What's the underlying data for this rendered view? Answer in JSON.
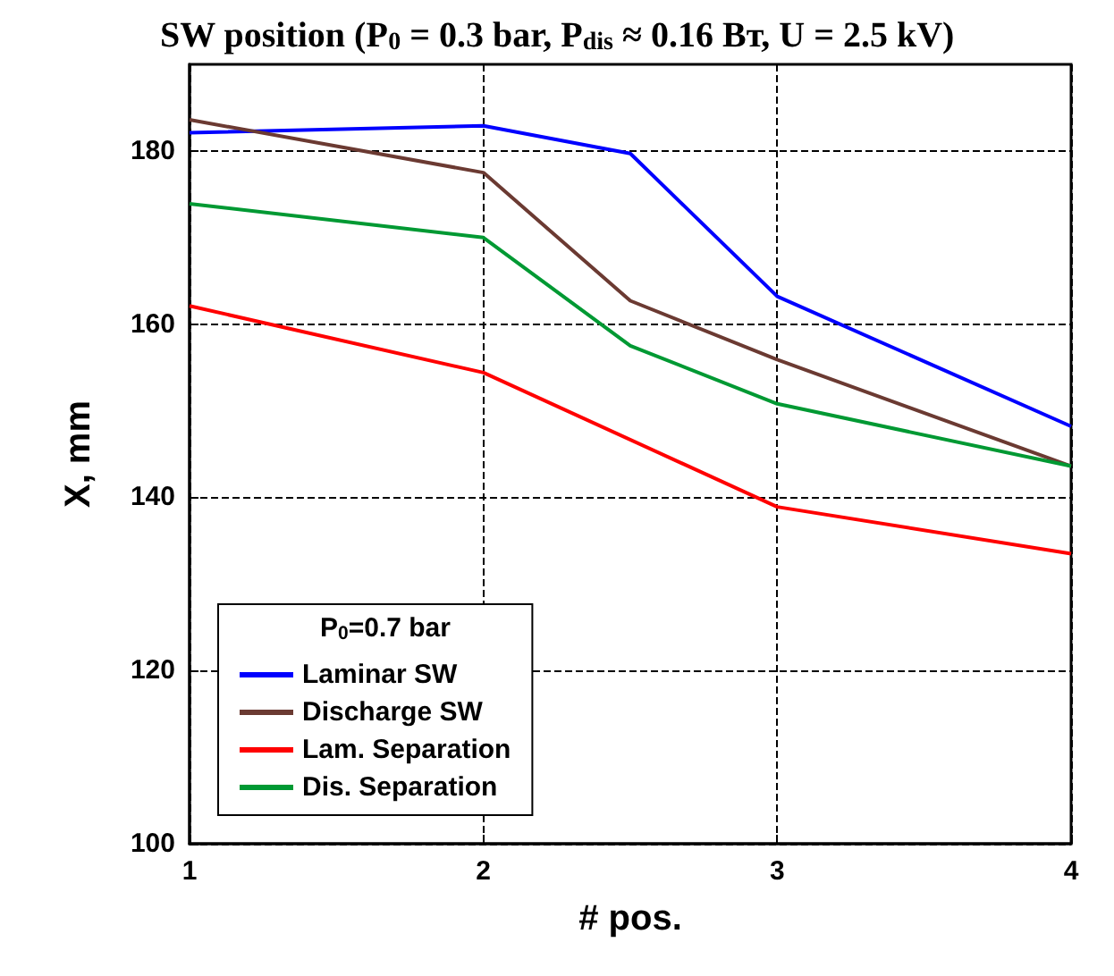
{
  "chart_data": {
    "type": "line",
    "title": "SW position (P$_{0}$ = 0.3 bar, P$_{dis}$ ≈ 0.16 Вт, U = 2.5 kV)",
    "xlabel": "# pos.",
    "ylabel": "X, mm",
    "legend_title": "P$_{0}$=0.7 bar",
    "x": [
      1,
      2,
      2.5,
      3,
      4
    ],
    "series": [
      {
        "name": "Laminar SW",
        "color": "#0000ff",
        "values": [
          182.1,
          182.9,
          179.7,
          163.2,
          148.2
        ]
      },
      {
        "name": "Discharge SW",
        "color": "#6b3a32",
        "values": [
          183.6,
          177.5,
          162.7,
          155.9,
          143.6
        ]
      },
      {
        "name": "Lam. Separation",
        "color": "#ff0000",
        "x": [
          1,
          2,
          3,
          4
        ],
        "values": [
          162.1,
          154.4,
          138.9,
          133.5
        ]
      },
      {
        "name": "Dis. Separation",
        "color": "#009933",
        "values": [
          173.9,
          170,
          157.5,
          150.8,
          143.6
        ]
      }
    ],
    "xlim": [
      1,
      4
    ],
    "xticks": [
      1,
      2,
      3,
      4
    ],
    "ylim": [
      100,
      190
    ],
    "yticks": [
      100,
      120,
      140,
      160,
      180
    ],
    "grid": true,
    "legend": "bottom left",
    "marker": "none",
    "line_style": "solid"
  }
}
